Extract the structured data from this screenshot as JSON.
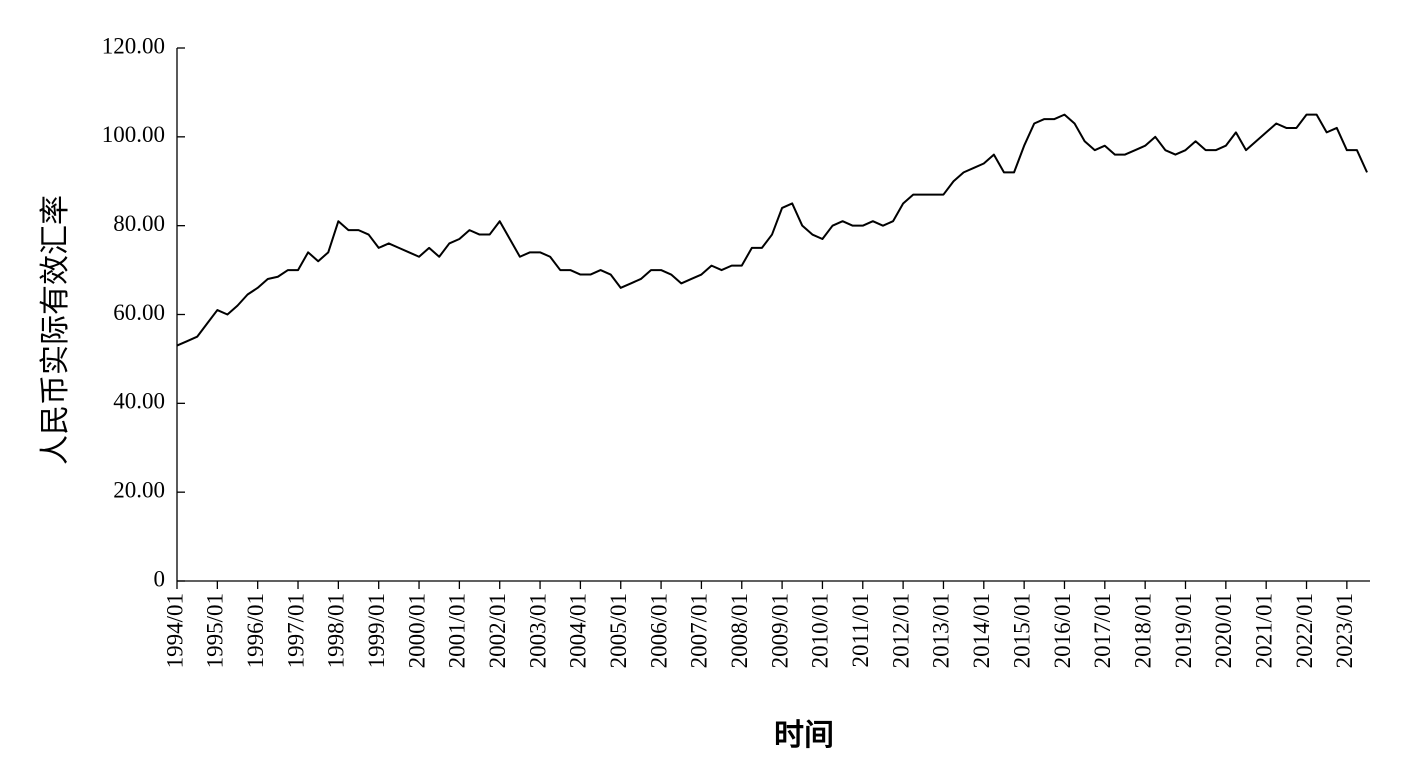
{
  "chart_data": {
    "type": "line",
    "x_label": "时间",
    "y_label": "人民币实际有效汇率",
    "categories": [
      "1994/01",
      null,
      null,
      null,
      "1995/01",
      null,
      null,
      null,
      "1996/01",
      null,
      null,
      null,
      "1997/01",
      null,
      null,
      null,
      "1998/01",
      null,
      null,
      null,
      "1999/01",
      null,
      null,
      null,
      "2000/01",
      null,
      null,
      null,
      "2001/01",
      null,
      null,
      null,
      "2002/01",
      null,
      null,
      null,
      "2003/01",
      null,
      null,
      null,
      "2004/01",
      null,
      null,
      null,
      "2005/01",
      null,
      null,
      null,
      "2006/01",
      null,
      null,
      null,
      "2007/01",
      null,
      null,
      null,
      "2008/01",
      null,
      null,
      null,
      "2009/01",
      null,
      null,
      null,
      "2010/01",
      null,
      null,
      null,
      "2011/01",
      null,
      null,
      null,
      "2012/01",
      null,
      null,
      null,
      "2013/01",
      null,
      null,
      null,
      "2014/01",
      null,
      null,
      null,
      "2015/01",
      null,
      null,
      null,
      "2016/01",
      null,
      null,
      null,
      "2017/01",
      null,
      null,
      null,
      "2018/01",
      null,
      null,
      null,
      "2019/01",
      null,
      null,
      null,
      "2020/01",
      null,
      null,
      null,
      "2021/01",
      null,
      null,
      null,
      "2022/01",
      null,
      null,
      null,
      "2023/01",
      null,
      null
    ],
    "values": [
      53,
      54,
      55,
      58,
      61,
      60,
      62,
      64.5,
      66,
      68,
      68.5,
      70,
      70,
      74,
      72,
      74,
      81,
      79,
      79,
      78,
      75,
      76,
      75,
      74,
      73,
      75,
      73,
      76,
      77,
      79,
      78,
      78,
      81,
      77,
      73,
      74,
      74,
      73,
      70,
      70,
      69,
      69,
      70,
      69,
      66,
      67,
      68,
      70,
      70,
      69,
      67,
      68,
      69,
      71,
      70,
      71,
      71,
      75,
      75,
      78,
      84,
      85,
      80,
      78,
      77,
      80,
      81,
      80,
      80,
      81,
      80,
      81,
      85,
      87,
      87,
      87,
      87,
      90,
      92,
      93,
      94,
      96,
      92,
      92,
      98,
      103,
      104,
      104,
      105,
      103,
      99,
      97,
      98,
      96,
      96,
      97,
      98,
      100,
      97,
      96,
      97,
      99,
      97,
      97,
      98,
      101,
      97,
      99,
      101,
      103,
      102,
      102,
      105,
      105,
      101,
      102,
      97,
      97,
      92
    ],
    "color": "#000000",
    "ylim": [
      0,
      120
    ],
    "yticks": [
      0,
      {
        "value": 20,
        "label": "20.00"
      },
      {
        "value": 40,
        "label": "40.00"
      },
      {
        "value": 60,
        "label": "60.00"
      },
      {
        "value": 80,
        "label": "80.00"
      },
      {
        "value": 100,
        "label": "100.00"
      },
      {
        "value": 120,
        "label": "120.00"
      }
    ]
  }
}
